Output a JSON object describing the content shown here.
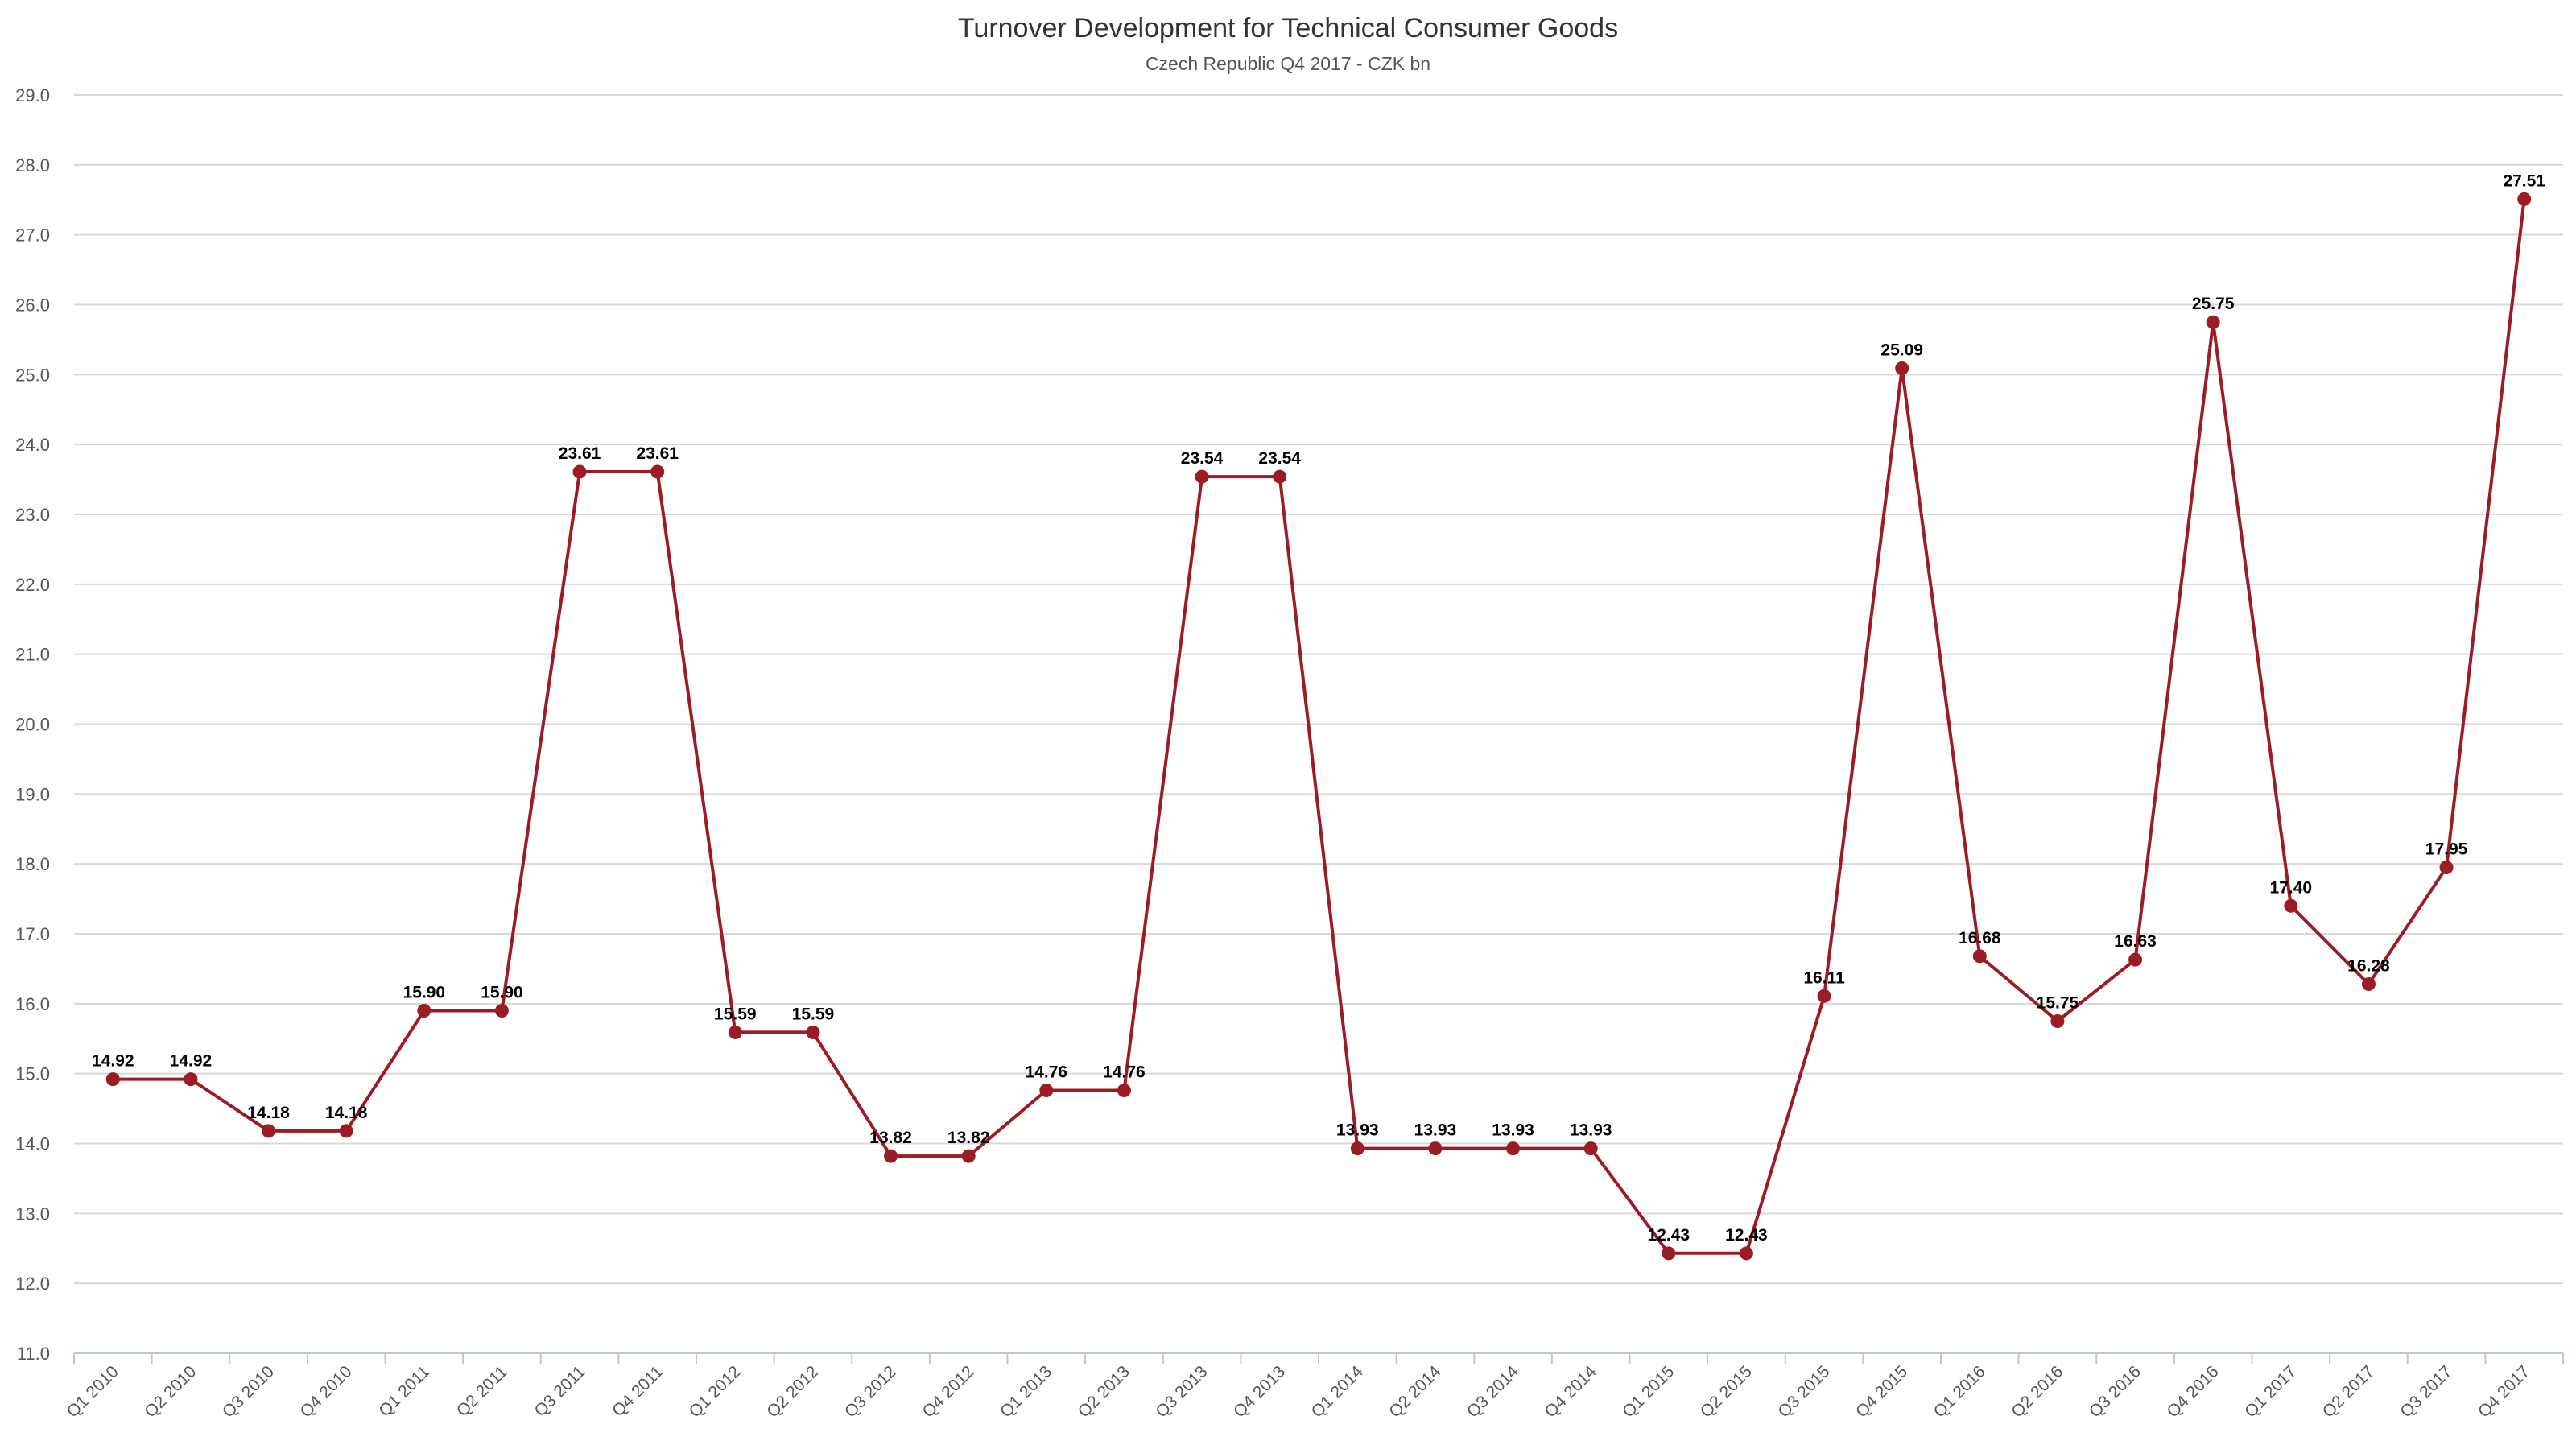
{
  "chart_data": {
    "type": "line",
    "title": "Turnover Development for Technical Consumer Goods",
    "subtitle": "Czech Republic Q4 2017 - CZK bn",
    "xlabel": "",
    "ylabel": "",
    "ylim": [
      11.0,
      29.0
    ],
    "ytick_step": 1.0,
    "grid": true,
    "legend": "none",
    "categories": [
      "Q1 2010",
      "Q2 2010",
      "Q3 2010",
      "Q4 2010",
      "Q1 2011",
      "Q2 2011",
      "Q3 2011",
      "Q4 2011",
      "Q1 2012",
      "Q2 2012",
      "Q3 2012",
      "Q4 2012",
      "Q1 2013",
      "Q2 2013",
      "Q3 2013",
      "Q4 2013",
      "Q1 2014",
      "Q2 2014",
      "Q3 2014",
      "Q4 2014",
      "Q1 2015",
      "Q2 2015",
      "Q3 2015",
      "Q4 2015",
      "Q1 2016",
      "Q2 2016",
      "Q3 2016",
      "Q4 2016",
      "Q1 2017",
      "Q2 2017",
      "Q3 2017",
      "Q4 2017"
    ],
    "series": [
      {
        "values": [
          14.92,
          14.92,
          14.18,
          14.18,
          15.9,
          15.9,
          23.61,
          23.61,
          15.59,
          15.59,
          13.82,
          13.82,
          14.76,
          14.76,
          23.54,
          23.54,
          13.93,
          13.93,
          13.93,
          13.93,
          12.43,
          12.43,
          16.11,
          25.09,
          16.68,
          15.75,
          16.63,
          25.75,
          17.4,
          16.28,
          17.95,
          27.51
        ],
        "color": "#9b1c24"
      }
    ]
  }
}
